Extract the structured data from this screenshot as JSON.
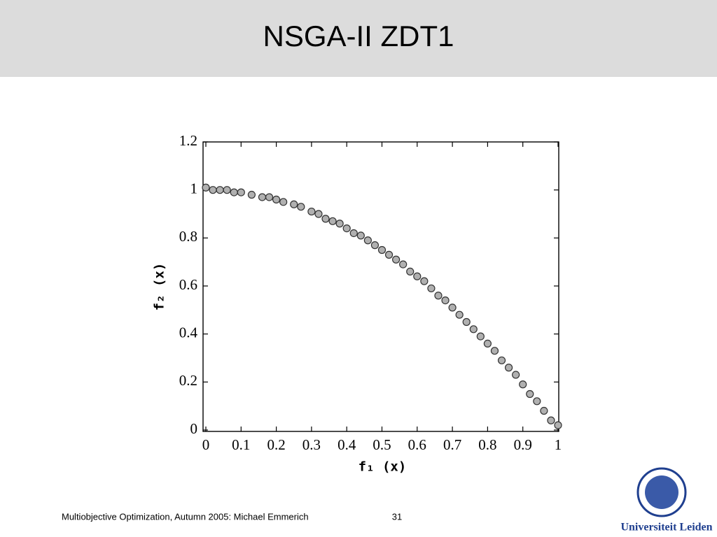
{
  "slide_title": "NSGA-II ZDT1",
  "footer": "Multiobjective Optimization, Autumn 2005: Michael Emmerich",
  "page_number": "31",
  "logo_text": "Universiteit Leiden",
  "chart_data": {
    "type": "scatter",
    "x_label": "f₁ (x)",
    "y_label": "f₂ (x)",
    "x": [
      0,
      0.02,
      0.04,
      0.06,
      0.08,
      0.1,
      0.13,
      0.16,
      0.18,
      0.2,
      0.22,
      0.25,
      0.27,
      0.3,
      0.32,
      0.34,
      0.36,
      0.38,
      0.4,
      0.42,
      0.44,
      0.46,
      0.48,
      0.5,
      0.52,
      0.54,
      0.56,
      0.58,
      0.6,
      0.62,
      0.64,
      0.66,
      0.68,
      0.7,
      0.72,
      0.74,
      0.76,
      0.78,
      0.8,
      0.82,
      0.84,
      0.86,
      0.88,
      0.9,
      0.92,
      0.94,
      0.96,
      0.98,
      1.0
    ],
    "values": [
      1.01,
      1,
      1,
      1,
      0.99,
      0.99,
      0.98,
      0.97,
      0.97,
      0.96,
      0.95,
      0.94,
      0.93,
      0.91,
      0.9,
      0.88,
      0.87,
      0.86,
      0.84,
      0.82,
      0.81,
      0.79,
      0.77,
      0.75,
      0.73,
      0.71,
      0.69,
      0.66,
      0.64,
      0.62,
      0.59,
      0.56,
      0.54,
      0.51,
      0.48,
      0.45,
      0.42,
      0.39,
      0.36,
      0.33,
      0.29,
      0.26,
      0.23,
      0.19,
      0.15,
      0.12,
      0.08,
      0.04,
      0.02
    ],
    "color": "#b0b0b0",
    "xlim": [
      0,
      1
    ],
    "ylim": [
      0,
      1.2
    ],
    "xticks": [
      0,
      0.1,
      0.2,
      0.3,
      0.4,
      0.5,
      0.6,
      0.7,
      0.8,
      0.9,
      1
    ],
    "yticks": [
      0,
      0.2,
      0.4,
      0.6,
      0.8,
      1,
      1.2
    ]
  }
}
